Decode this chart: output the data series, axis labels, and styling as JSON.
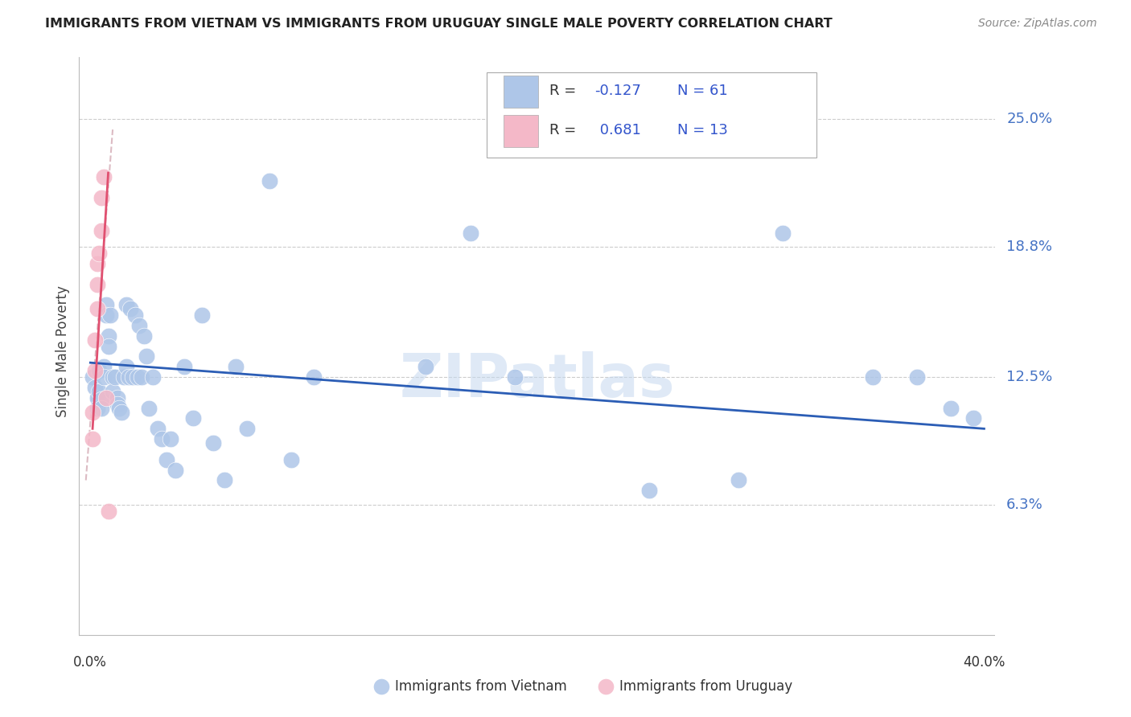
{
  "title": "IMMIGRANTS FROM VIETNAM VS IMMIGRANTS FROM URUGUAY SINGLE MALE POVERTY CORRELATION CHART",
  "source": "Source: ZipAtlas.com",
  "ylabel": "Single Male Poverty",
  "ytick_labels": [
    "25.0%",
    "18.8%",
    "12.5%",
    "6.3%"
  ],
  "ytick_values": [
    0.25,
    0.188,
    0.125,
    0.063
  ],
  "xlim": [
    0.0,
    0.4
  ],
  "ylim": [
    0.0,
    0.28
  ],
  "legend_r_vietnam": "-0.127",
  "legend_n_vietnam": "61",
  "legend_r_uruguay": "0.681",
  "legend_n_uruguay": "13",
  "vietnam_color": "#aec6e8",
  "uruguay_color": "#f4b8c8",
  "trendline_vietnam_color": "#2B5DB5",
  "trendline_uruguay_color": "#e05070",
  "trendline_uruguay_dashed_color": "#d4aab5",
  "watermark": "ZIPatlas",
  "background_color": "#ffffff",
  "vietnam_points_x": [
    0.001,
    0.002,
    0.003,
    0.003,
    0.004,
    0.004,
    0.005,
    0.005,
    0.006,
    0.006,
    0.007,
    0.007,
    0.008,
    0.008,
    0.009,
    0.01,
    0.01,
    0.011,
    0.012,
    0.012,
    0.013,
    0.014,
    0.015,
    0.016,
    0.016,
    0.017,
    0.018,
    0.019,
    0.02,
    0.021,
    0.022,
    0.023,
    0.024,
    0.025,
    0.026,
    0.028,
    0.03,
    0.032,
    0.034,
    0.036,
    0.038,
    0.042,
    0.046,
    0.05,
    0.055,
    0.06,
    0.065,
    0.07,
    0.08,
    0.09,
    0.1,
    0.15,
    0.17,
    0.19,
    0.25,
    0.29,
    0.31,
    0.35,
    0.37,
    0.385,
    0.395
  ],
  "vietnam_points_y": [
    0.125,
    0.12,
    0.115,
    0.11,
    0.128,
    0.118,
    0.114,
    0.11,
    0.13,
    0.125,
    0.16,
    0.155,
    0.145,
    0.14,
    0.155,
    0.125,
    0.118,
    0.125,
    0.115,
    0.112,
    0.11,
    0.108,
    0.125,
    0.13,
    0.16,
    0.125,
    0.158,
    0.125,
    0.155,
    0.125,
    0.15,
    0.125,
    0.145,
    0.135,
    0.11,
    0.125,
    0.1,
    0.095,
    0.085,
    0.095,
    0.08,
    0.13,
    0.105,
    0.155,
    0.093,
    0.075,
    0.13,
    0.1,
    0.22,
    0.085,
    0.125,
    0.13,
    0.195,
    0.125,
    0.07,
    0.075,
    0.195,
    0.125,
    0.125,
    0.11,
    0.105
  ],
  "uruguay_points_x": [
    0.001,
    0.001,
    0.002,
    0.002,
    0.003,
    0.003,
    0.003,
    0.004,
    0.005,
    0.005,
    0.006,
    0.007,
    0.008
  ],
  "uruguay_points_y": [
    0.095,
    0.108,
    0.128,
    0.143,
    0.158,
    0.17,
    0.18,
    0.185,
    0.196,
    0.212,
    0.222,
    0.115,
    0.06
  ],
  "trendline_vietnam_x0": 0.0,
  "trendline_vietnam_x1": 0.4,
  "trendline_vietnam_y0": 0.132,
  "trendline_vietnam_y1": 0.1,
  "trendline_uruguay_solid_x0": 0.001,
  "trendline_uruguay_solid_x1": 0.008,
  "trendline_uruguay_solid_y0": 0.1,
  "trendline_uruguay_solid_y1": 0.224,
  "trendline_uruguay_dash_x0": -0.002,
  "trendline_uruguay_dash_x1": 0.01,
  "trendline_uruguay_dash_y0": 0.075,
  "trendline_uruguay_dash_y1": 0.245
}
